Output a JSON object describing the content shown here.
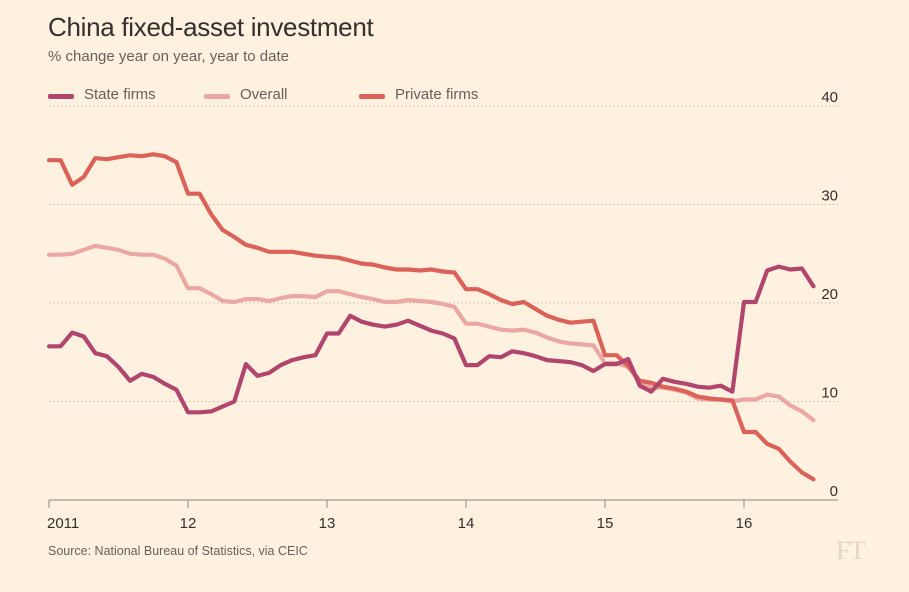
{
  "title": "China fixed-asset investment",
  "subtitle": "% change year on year, year to date",
  "source": "Source: National Bureau of Statistics, via CEIC",
  "logo_text": "FT",
  "colors": {
    "background": "#fff1e0",
    "state": "#b0466d",
    "overall": "#eba8a3",
    "private": "#db6258",
    "grid": "#c9bfb4",
    "text": "#33302e"
  },
  "legend": [
    {
      "label": "State firms",
      "color": "#b0466d"
    },
    {
      "label": "Overall",
      "color": "#eba8a3"
    },
    {
      "label": "Private firms",
      "color": "#db6258"
    }
  ],
  "chart_data": {
    "type": "line",
    "title": "China fixed-asset investment",
    "subtitle": "% change year on year, year to date",
    "x_tick_labels": [
      "2011",
      "12",
      "13",
      "14",
      "15",
      "16"
    ],
    "y_tick_labels": [
      "0",
      "10",
      "20",
      "30",
      "40"
    ],
    "ylim": [
      0,
      40
    ],
    "xlim": [
      "2011-01",
      "2016-07"
    ],
    "y_axis_position": "right",
    "grid": "horizontal dotted",
    "legend_position": "top-left",
    "x": [
      "2011-01",
      "2011-02",
      "2011-03",
      "2011-04",
      "2011-05",
      "2011-06",
      "2011-07",
      "2011-08",
      "2011-09",
      "2011-10",
      "2011-11",
      "2011-12",
      "2012-01",
      "2012-02",
      "2012-03",
      "2012-04",
      "2012-05",
      "2012-06",
      "2012-07",
      "2012-08",
      "2012-09",
      "2012-10",
      "2012-11",
      "2012-12",
      "2013-01",
      "2013-02",
      "2013-03",
      "2013-04",
      "2013-05",
      "2013-06",
      "2013-07",
      "2013-08",
      "2013-09",
      "2013-10",
      "2013-11",
      "2013-12",
      "2014-01",
      "2014-02",
      "2014-03",
      "2014-04",
      "2014-05",
      "2014-06",
      "2014-07",
      "2014-08",
      "2014-09",
      "2014-10",
      "2014-11",
      "2014-12",
      "2015-01",
      "2015-02",
      "2015-03",
      "2015-04",
      "2015-05",
      "2015-06",
      "2015-07",
      "2015-08",
      "2015-09",
      "2015-10",
      "2015-11",
      "2015-12",
      "2016-01",
      "2016-02",
      "2016-03",
      "2016-04",
      "2016-05",
      "2016-06",
      "2016-07"
    ],
    "series": [
      {
        "name": "State firms",
        "color": "#b0466d",
        "values": [
          15.6,
          15.6,
          17.0,
          16.6,
          14.9,
          14.6,
          13.5,
          12.1,
          12.8,
          12.5,
          11.8,
          11.2,
          8.9,
          8.9,
          9.0,
          9.5,
          10.0,
          13.8,
          12.6,
          12.9,
          13.7,
          14.2,
          14.5,
          14.7,
          16.9,
          16.9,
          18.7,
          18.1,
          17.8,
          17.6,
          17.8,
          18.2,
          17.7,
          17.2,
          16.9,
          16.4,
          13.7,
          13.7,
          14.6,
          14.5,
          15.1,
          14.9,
          14.6,
          14.2,
          14.1,
          14.0,
          13.7,
          13.1,
          13.8,
          13.8,
          14.3,
          11.6,
          11.0,
          12.3,
          12.0,
          11.8,
          11.5,
          11.4,
          11.6,
          11.0,
          20.1,
          20.1,
          23.3,
          23.7,
          23.4,
          23.5,
          21.7
        ]
      },
      {
        "name": "Overall",
        "color": "#eba8a3",
        "values": [
          24.9,
          24.9,
          25.0,
          25.4,
          25.8,
          25.6,
          25.4,
          25.0,
          24.9,
          24.9,
          24.5,
          23.8,
          21.5,
          21.5,
          20.9,
          20.2,
          20.1,
          20.4,
          20.4,
          20.2,
          20.5,
          20.7,
          20.7,
          20.6,
          21.2,
          21.2,
          20.9,
          20.6,
          20.4,
          20.1,
          20.1,
          20.3,
          20.2,
          20.1,
          19.9,
          19.6,
          17.9,
          17.9,
          17.6,
          17.3,
          17.2,
          17.3,
          17.0,
          16.5,
          16.1,
          15.9,
          15.8,
          15.7,
          13.9,
          13.9,
          13.5,
          12.0,
          11.4,
          11.4,
          11.2,
          10.9,
          10.3,
          10.2,
          10.2,
          10.0,
          10.2,
          10.2,
          10.7,
          10.5,
          9.6,
          9.0,
          8.1
        ]
      },
      {
        "name": "Private firms",
        "color": "#db6258",
        "values": [
          34.5,
          34.5,
          32.0,
          32.8,
          34.7,
          34.6,
          34.8,
          35.0,
          34.9,
          35.1,
          34.9,
          34.3,
          31.1,
          31.1,
          29.0,
          27.4,
          26.7,
          25.9,
          25.6,
          25.2,
          25.2,
          25.2,
          25.0,
          24.8,
          24.7,
          24.6,
          24.3,
          24.0,
          23.9,
          23.6,
          23.4,
          23.4,
          23.3,
          23.4,
          23.2,
          23.1,
          21.4,
          21.4,
          20.9,
          20.3,
          19.9,
          20.1,
          19.4,
          18.7,
          18.3,
          18.0,
          18.1,
          18.2,
          14.7,
          14.7,
          13.6,
          12.1,
          11.9,
          11.5,
          11.3,
          11.0,
          10.5,
          10.3,
          10.2,
          10.1,
          6.9,
          6.9,
          5.7,
          5.2,
          3.9,
          2.8,
          2.1
        ]
      }
    ]
  }
}
